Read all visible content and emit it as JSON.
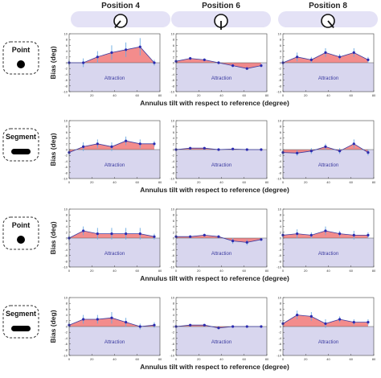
{
  "header": {
    "positions": [
      {
        "label": "Position 4",
        "dial_angle_deg": -40
      },
      {
        "label": "Position 6",
        "dial_angle_deg": 0
      },
      {
        "label": "Position 8",
        "dial_angle_deg": 40
      }
    ]
  },
  "row_labels": [
    "Point",
    "Segment",
    "Point",
    "Segment"
  ],
  "row_icons": [
    "dot-icon",
    "bar-icon",
    "dot-icon",
    "bar-icon"
  ],
  "ylabel": "Bias (deg)",
  "xlabel": "Annulus tilt with respect to reference (degree)",
  "region_label": "Attraction",
  "x_ticks": [
    "0",
    "20",
    "40",
    "60",
    "80"
  ],
  "y_ticks": [
    "-10",
    "-8",
    "-6",
    "-4",
    "-2",
    "0",
    "2",
    "4",
    "6",
    "8",
    "10"
  ],
  "colors": {
    "fill": "#f28080",
    "attraction": "#d8d6ee",
    "line": "#3a3aa0",
    "point": "#2b2bb0",
    "error_bar": "#6aaae0",
    "header_pill": "#e4e2f6"
  },
  "chart_data": {
    "type": "area",
    "x": [
      0,
      12.5,
      25,
      37.5,
      50,
      62.5,
      75
    ],
    "xlim": [
      0,
      80
    ],
    "ylim": [
      -10,
      10
    ],
    "grid": false,
    "panels": [
      [
        {
          "y": [
            0,
            0,
            2,
            3.5,
            4.5,
            5.5,
            0
          ],
          "err": [
            1,
            1.5,
            2,
            2.5,
            2.5,
            3,
            1
          ]
        },
        {
          "y": [
            0.5,
            1.5,
            1,
            0,
            -1,
            -2,
            -1
          ],
          "err": [
            0.5,
            0.5,
            0.5,
            0.5,
            0.5,
            0.5,
            0.5
          ]
        },
        {
          "y": [
            0,
            2,
            1,
            3.5,
            2,
            3.5,
            1
          ],
          "err": [
            1,
            1.5,
            1,
            1.5,
            1,
            1.5,
            1
          ]
        }
      ],
      [
        {
          "y": [
            -1,
            1,
            2,
            1,
            3,
            2,
            2
          ],
          "err": [
            1,
            1.5,
            1.5,
            1.5,
            1.5,
            1.5,
            1
          ]
        },
        {
          "y": [
            0,
            0.5,
            0.5,
            0,
            0.2,
            0,
            0
          ],
          "err": [
            0.3,
            0.3,
            0.3,
            0.3,
            0.3,
            0.3,
            0.3
          ]
        },
        {
          "y": [
            -1,
            -1.2,
            -0.5,
            1,
            -0.5,
            2,
            -1
          ],
          "err": [
            1,
            1,
            1,
            1,
            1,
            1.5,
            1
          ]
        }
      ],
      [
        {
          "y": [
            0,
            2.5,
            1.5,
            1.5,
            1.5,
            1.5,
            0.5
          ],
          "err": [
            1,
            1.5,
            2,
            2,
            2,
            2,
            1
          ]
        },
        {
          "y": [
            0.5,
            0.5,
            1,
            0.5,
            -1,
            -1.5,
            -0.5
          ],
          "err": [
            0.5,
            0.5,
            0.5,
            0.5,
            1,
            1,
            0.5
          ]
        },
        {
          "y": [
            1,
            1.5,
            1,
            2.5,
            1.5,
            1,
            1
          ],
          "err": [
            1,
            1.5,
            1,
            1.5,
            1,
            1.5,
            1
          ]
        }
      ],
      [
        {
          "y": [
            0.5,
            2.5,
            2.5,
            3,
            1.5,
            0,
            0.5
          ],
          "err": [
            1,
            1.5,
            1.5,
            2,
            1.5,
            1,
            1
          ]
        },
        {
          "y": [
            0,
            0.5,
            0.5,
            -0.5,
            0,
            0,
            0
          ],
          "err": [
            0.3,
            0.3,
            0.3,
            0.3,
            0.3,
            0.3,
            0.3
          ]
        },
        {
          "y": [
            1,
            4,
            3.5,
            1,
            2.5,
            1.5,
            1.5
          ],
          "err": [
            1,
            1.5,
            1.5,
            1.5,
            1,
            1,
            1
          ]
        }
      ]
    ]
  }
}
